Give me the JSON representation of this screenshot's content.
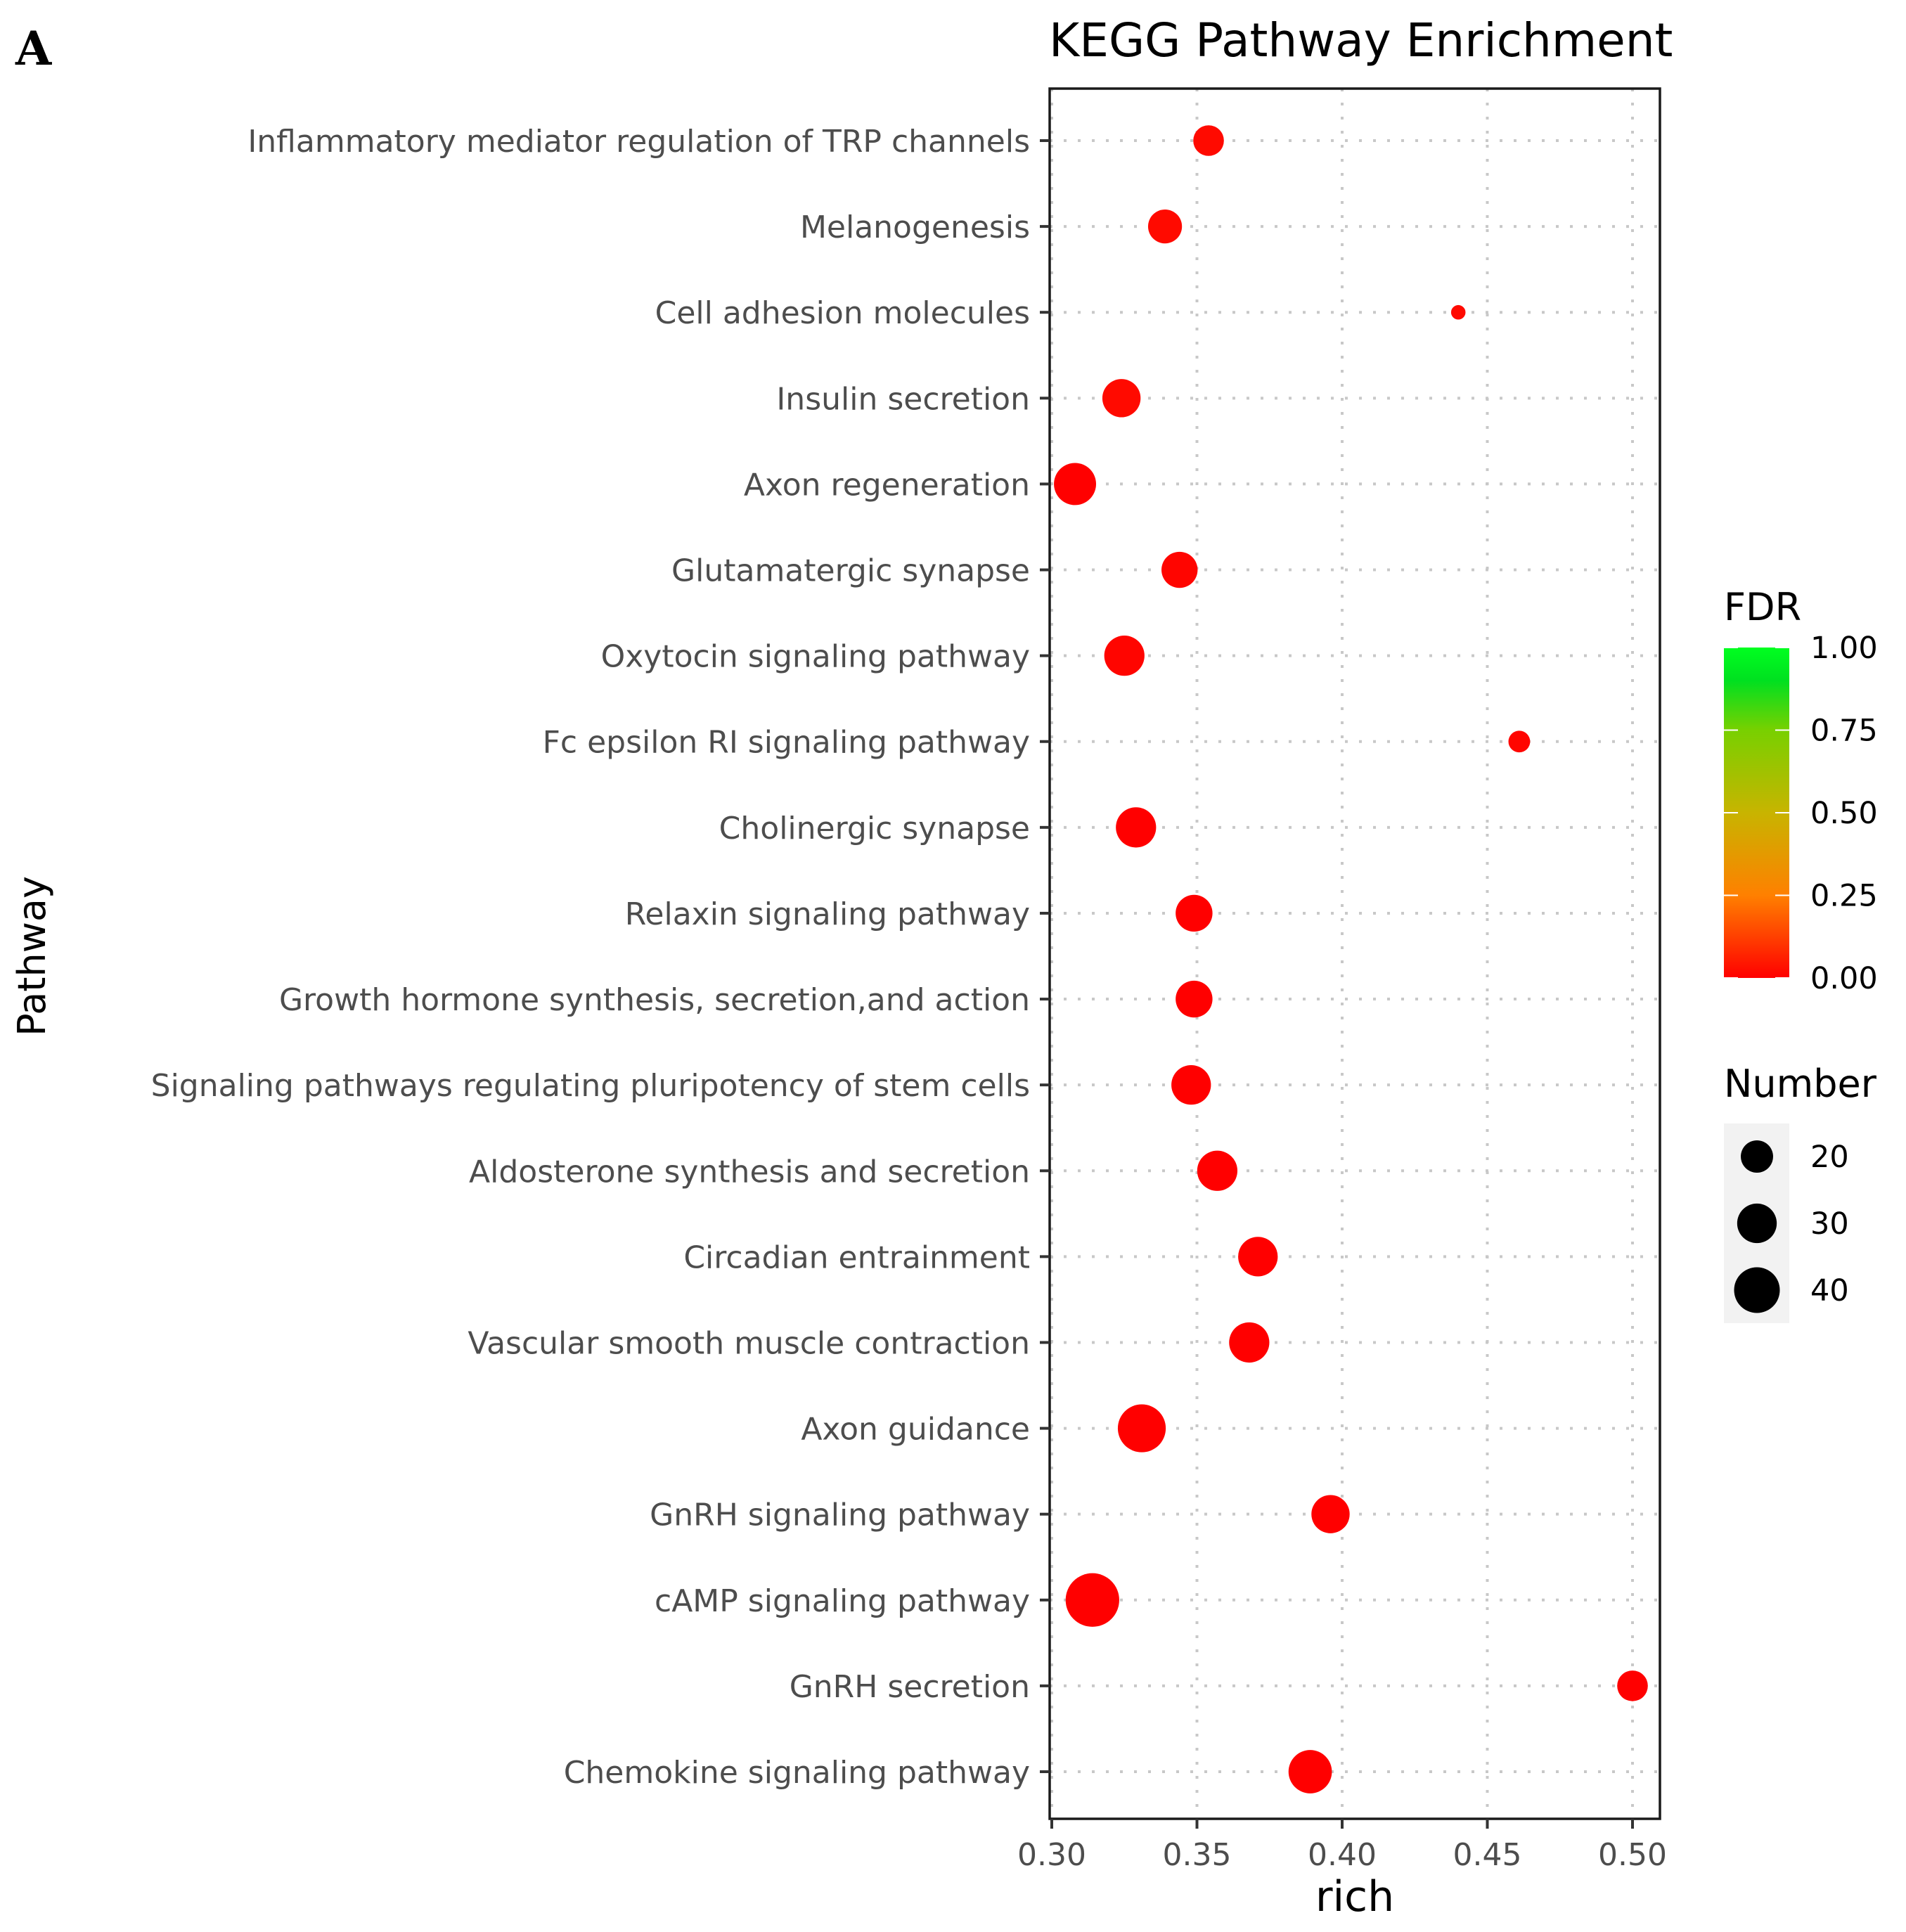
{
  "panel_label": "A",
  "chart_data": {
    "type": "scatter",
    "title": "KEGG Pathway Enrichment",
    "xlabel": "rich",
    "ylabel": "Pathway",
    "xlim": [
      0.298,
      0.515
    ],
    "xticks": [
      0.3,
      0.35,
      0.4,
      0.45,
      0.5
    ],
    "xtick_labels": [
      "0.30",
      "0.35",
      "0.40",
      "0.45",
      "0.50"
    ],
    "grid": true,
    "points": [
      {
        "pathway": "Inflammatory mediator regulation of TRP channels",
        "rich": 0.354,
        "number": 18,
        "fdr": 0.02
      },
      {
        "pathway": "Melanogenesis",
        "rich": 0.339,
        "number": 22,
        "fdr": 0.02
      },
      {
        "pathway": "Cell adhesion molecules",
        "rich": 0.44,
        "number": 4,
        "fdr": 0.02
      },
      {
        "pathway": "Insulin secretion",
        "rich": 0.324,
        "number": 28,
        "fdr": 0.02
      },
      {
        "pathway": "Axon regeneration",
        "rich": 0.308,
        "number": 34,
        "fdr": 0.0
      },
      {
        "pathway": "Glutamatergic synapse",
        "rich": 0.344,
        "number": 25,
        "fdr": 0.01
      },
      {
        "pathway": "Oxytocin signaling pathway",
        "rich": 0.325,
        "number": 31,
        "fdr": 0.01
      },
      {
        "pathway": "Fc epsilon RI signaling pathway",
        "rich": 0.461,
        "number": 9,
        "fdr": 0.01
      },
      {
        "pathway": "Cholinergic synapse",
        "rich": 0.329,
        "number": 31,
        "fdr": 0.0
      },
      {
        "pathway": "Relaxin signaling pathway",
        "rich": 0.349,
        "number": 26,
        "fdr": 0.0
      },
      {
        "pathway": "Growth hormone synthesis, secretion,and action",
        "rich": 0.349,
        "number": 26,
        "fdr": 0.0
      },
      {
        "pathway": "Signaling pathways regulating pluripotency of stem cells",
        "rich": 0.348,
        "number": 30,
        "fdr": 0.0
      },
      {
        "pathway": "Aldosterone synthesis and secretion",
        "rich": 0.357,
        "number": 31,
        "fdr": 0.0
      },
      {
        "pathway": "Circadian entrainment",
        "rich": 0.371,
        "number": 30,
        "fdr": 0.0
      },
      {
        "pathway": "Vascular smooth muscle contraction",
        "rich": 0.368,
        "number": 31,
        "fdr": 0.0
      },
      {
        "pathway": "Axon guidance",
        "rich": 0.331,
        "number": 44,
        "fdr": 0.0
      },
      {
        "pathway": "GnRH signaling pathway",
        "rich": 0.396,
        "number": 28,
        "fdr": 0.0
      },
      {
        "pathway": "cAMP signaling pathway",
        "rich": 0.314,
        "number": 55,
        "fdr": 0.0
      },
      {
        "pathway": "GnRH secretion",
        "rich": 0.5,
        "number": 18,
        "fdr": 0.0
      },
      {
        "pathway": "Chemokine signaling pathway",
        "rich": 0.389,
        "number": 36,
        "fdr": 0.0
      }
    ],
    "color_legend": {
      "title": "FDR",
      "ticks": [
        "1.00",
        "0.75",
        "0.50",
        "0.25",
        "0.00"
      ],
      "tick_values": [
        1.0,
        0.75,
        0.5,
        0.25,
        0.0
      ],
      "low_color": "#ff0000",
      "mid_color": "#ff8000",
      "high_color": "#00ff20"
    },
    "size_legend": {
      "title": "Number",
      "labels": [
        "20",
        "30",
        "40"
      ],
      "values": [
        20,
        30,
        40
      ]
    }
  }
}
